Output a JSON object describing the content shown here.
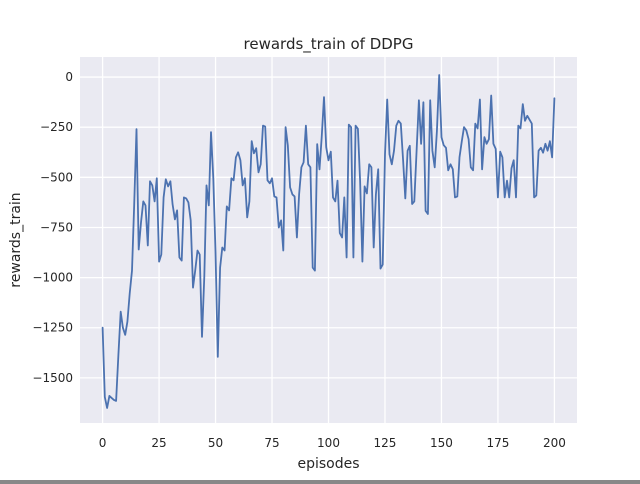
{
  "figure": {
    "title": "rewards_train of DDPG",
    "xlabel": "episodes",
    "ylabel": "rewards_train"
  },
  "colors": {
    "figure_bg": "#ffffff",
    "axes_bg": "#eaeaf2",
    "grid": "#ffffff",
    "line": "#4c72b0",
    "text": "#262626"
  },
  "chart_data": {
    "type": "line",
    "title": "rewards_train of DDPG",
    "xlabel": "episodes",
    "ylabel": "rewards_train",
    "x_ticks": [
      0,
      25,
      50,
      75,
      100,
      125,
      150,
      175,
      200
    ],
    "y_ticks": [
      0,
      -250,
      -500,
      -750,
      -1000,
      -1250,
      -1500
    ],
    "xlim": [
      -10,
      210
    ],
    "ylim": [
      -1725,
      100
    ],
    "grid": true,
    "legend_position": "none",
    "style": "seaborn-darkgrid",
    "series": [
      {
        "name": "rewards_train",
        "color": "#4c72b0",
        "x_start": 0,
        "x_step": 1,
        "values": [
          -1250,
          -1595,
          -1650,
          -1590,
          -1600,
          -1610,
          -1615,
          -1385,
          -1170,
          -1250,
          -1285,
          -1220,
          -1080,
          -965,
          -635,
          -260,
          -860,
          -725,
          -620,
          -640,
          -840,
          -520,
          -540,
          -620,
          -505,
          -920,
          -885,
          -600,
          -510,
          -545,
          -520,
          -635,
          -710,
          -665,
          -900,
          -915,
          -600,
          -605,
          -625,
          -715,
          -1050,
          -965,
          -865,
          -885,
          -1295,
          -995,
          -540,
          -640,
          -275,
          -505,
          -870,
          -1395,
          -950,
          -850,
          -865,
          -645,
          -665,
          -505,
          -515,
          -400,
          -375,
          -415,
          -540,
          -505,
          -700,
          -620,
          -320,
          -380,
          -355,
          -475,
          -435,
          -242,
          -247,
          -515,
          -530,
          -505,
          -595,
          -600,
          -750,
          -715,
          -865,
          -250,
          -340,
          -550,
          -585,
          -595,
          -800,
          -585,
          -450,
          -425,
          -242,
          -435,
          -450,
          -950,
          -965,
          -335,
          -460,
          -300,
          -100,
          -350,
          -415,
          -372,
          -600,
          -620,
          -517,
          -778,
          -800,
          -600,
          -900,
          -237,
          -250,
          -900,
          -242,
          -258,
          -517,
          -920,
          -545,
          -580,
          -435,
          -450,
          -850,
          -585,
          -460,
          -955,
          -935,
          -385,
          -112,
          -385,
          -435,
          -367,
          -242,
          -218,
          -232,
          -415,
          -605,
          -367,
          -343,
          -633,
          -620,
          -367,
          -116,
          -333,
          -126,
          -667,
          -683,
          -116,
          -367,
          -450,
          -270,
          10,
          -300,
          -340,
          -353,
          -465,
          -435,
          -460,
          -600,
          -595,
          -400,
          -320,
          -250,
          -266,
          -310,
          -450,
          -465,
          -232,
          -256,
          -112,
          -460,
          -300,
          -333,
          -310,
          -92,
          -333,
          -358,
          -600,
          -372,
          -400,
          -600,
          -517,
          -600,
          -455,
          -415,
          -600,
          -242,
          -256,
          -135,
          -218,
          -193,
          -213,
          -232,
          -600,
          -590,
          -367,
          -353,
          -377,
          -333,
          -367,
          -320,
          -400,
          -106
        ]
      }
    ]
  }
}
